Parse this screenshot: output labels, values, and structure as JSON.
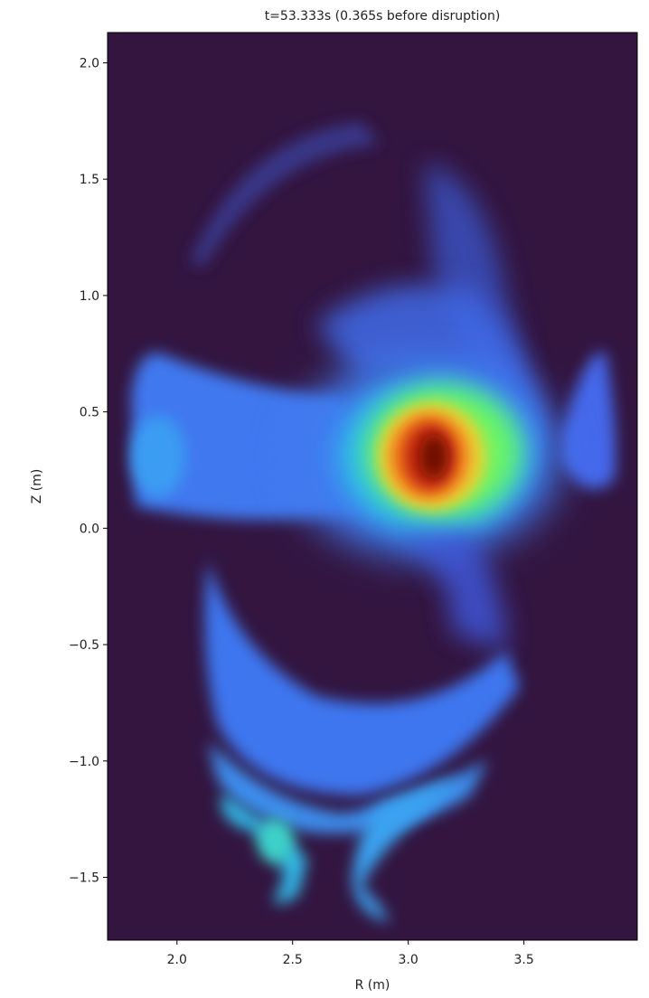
{
  "chart_data": {
    "type": "image",
    "title": "t=53.333s (0.365s before disruption)",
    "x_label": "R (m)",
    "y_label": "Z (m)",
    "xlim": [
      1.7,
      3.99
    ],
    "ylim": [
      -1.77,
      2.13
    ],
    "xticks": [
      {
        "value": 2.0,
        "label": "2.0"
      },
      2.5,
      {
        "value": 3.0,
        "label": "3.0"
      },
      3.5
    ],
    "yticks": [
      {
        "value": -1.5,
        "label": "−1.5"
      },
      {
        "value": -1.0,
        "label": "−1.0"
      },
      {
        "value": -0.5,
        "label": "−0.5"
      },
      {
        "value": 0.0,
        "label": "0.0"
      },
      0.5,
      {
        "value": 1.0,
        "label": "1.0"
      },
      1.5,
      {
        "value": 2.0,
        "label": "2.0"
      }
    ]
  }
}
